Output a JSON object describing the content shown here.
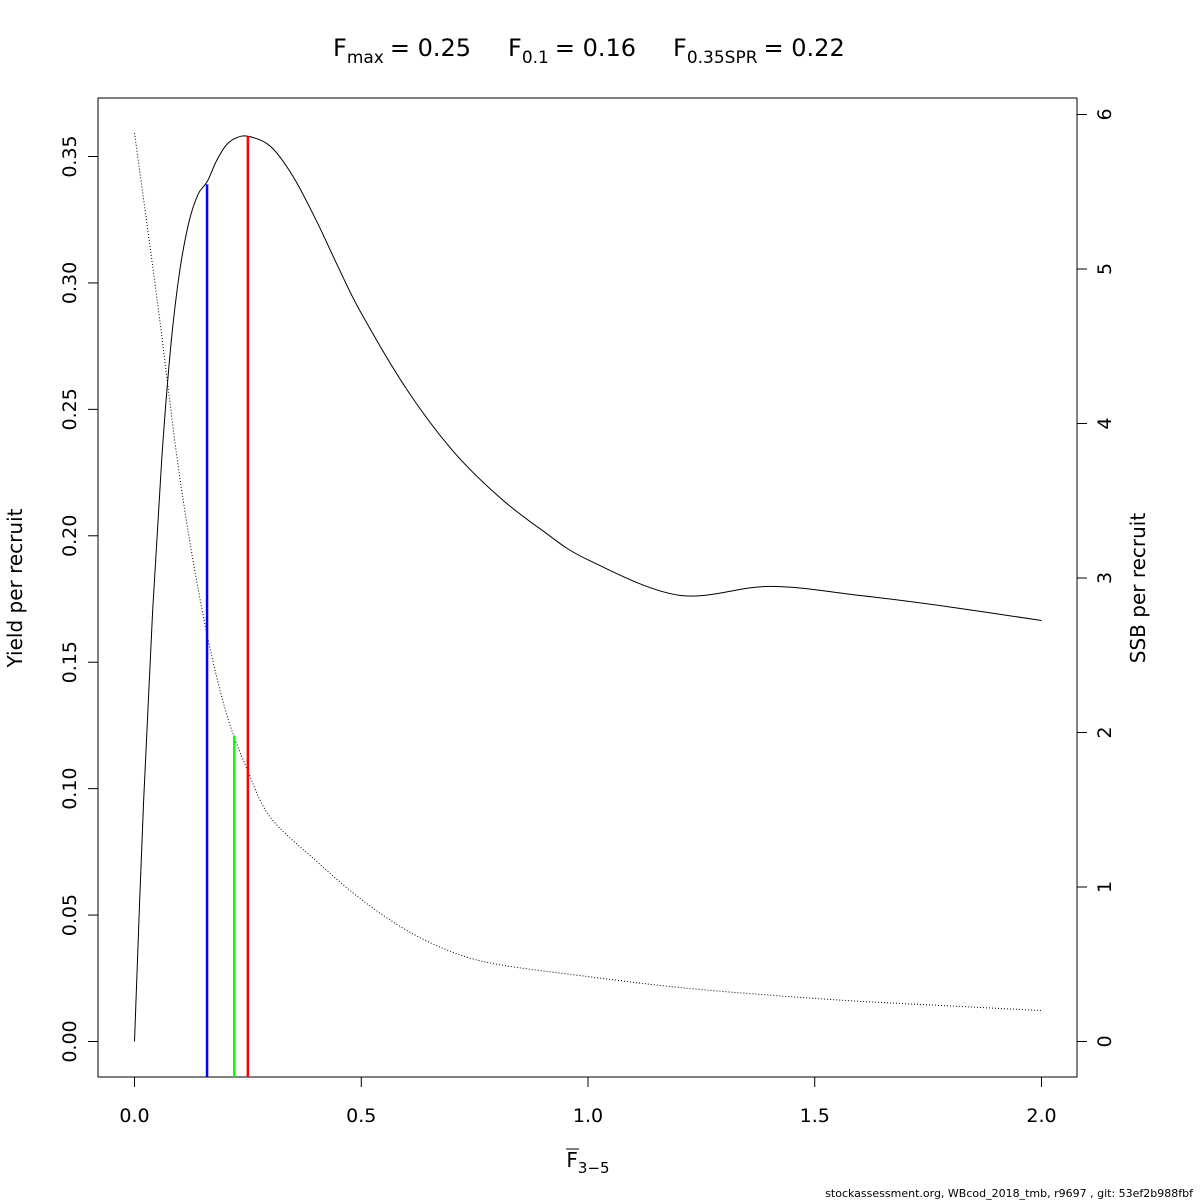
{
  "title": {
    "fmax": {
      "base": "F",
      "sub": "max",
      "value": "= 0.25"
    },
    "f01": {
      "base": "F",
      "sub": "0.1",
      "value": "= 0.16"
    },
    "fspr": {
      "base": "F",
      "sub": "0.35SPR",
      "value": "= 0.22"
    }
  },
  "axes": {
    "x_label": {
      "base": "F",
      "sub": "3−5"
    },
    "y_left_label": "Yield per recruit",
    "y_right_label": "SSB per recruit"
  },
  "footer": "stockassessment.org, WBcod_2018_tmb, r9697 , git: 53ef2b988fbf",
  "chart_data": {
    "type": "line",
    "xlim": [
      0.0,
      2.0
    ],
    "ylim_left": [
      0.0,
      0.35
    ],
    "ylim_right": [
      0,
      6
    ],
    "x_ticks": [
      "0.0",
      "0.5",
      "1.0",
      "1.5",
      "2.0"
    ],
    "y_left_ticks": [
      "0.00",
      "0.05",
      "0.10",
      "0.15",
      "0.20",
      "0.25",
      "0.30",
      "0.35"
    ],
    "y_right_ticks": [
      "0",
      "1",
      "2",
      "3",
      "4",
      "5",
      "6"
    ],
    "series": [
      {
        "axis": "left",
        "style": "solid",
        "color": "#000000",
        "x": [
          0,
          0.02,
          0.04,
          0.06,
          0.08,
          0.1,
          0.12,
          0.14,
          0.16,
          0.18,
          0.2,
          0.22,
          0.25,
          0.3,
          0.35,
          0.4,
          0.45,
          0.5,
          0.6,
          0.7,
          0.8,
          0.9,
          1.0,
          1.2,
          1.4,
          1.6,
          1.8,
          2.0
        ],
        "values": [
          0.0,
          0.095,
          0.17,
          0.23,
          0.275,
          0.305,
          0.324,
          0.335,
          0.34,
          0.348,
          0.354,
          0.357,
          0.358,
          0.354,
          0.342,
          0.325,
          0.306,
          0.288,
          0.258,
          0.234,
          0.216,
          0.202,
          0.1905,
          0.1765,
          0.18,
          0.1764,
          0.1718,
          0.1665
        ]
      },
      {
        "axis": "right",
        "style": "dotted",
        "color": "#000000",
        "x": [
          0,
          0.05,
          0.1,
          0.15,
          0.2,
          0.25,
          0.3,
          0.4,
          0.5,
          0.6,
          0.7,
          0.8,
          1.0,
          1.2,
          1.4,
          1.6,
          1.8,
          2.0
        ],
        "values": [
          5.88,
          4.8,
          3.65,
          2.78,
          2.15,
          1.75,
          1.45,
          1.17,
          0.92,
          0.72,
          0.58,
          0.5,
          0.42,
          0.35,
          0.3,
          0.26,
          0.23,
          0.2
        ]
      }
    ],
    "reference_lines": [
      {
        "x": 0.16,
        "y_top": 0.339,
        "color": "#0000ff"
      },
      {
        "x": 0.22,
        "y_top": 0.121,
        "color": "#00ff00"
      },
      {
        "x": 0.25,
        "y_top": 0.358,
        "color": "#ff0000"
      }
    ]
  }
}
